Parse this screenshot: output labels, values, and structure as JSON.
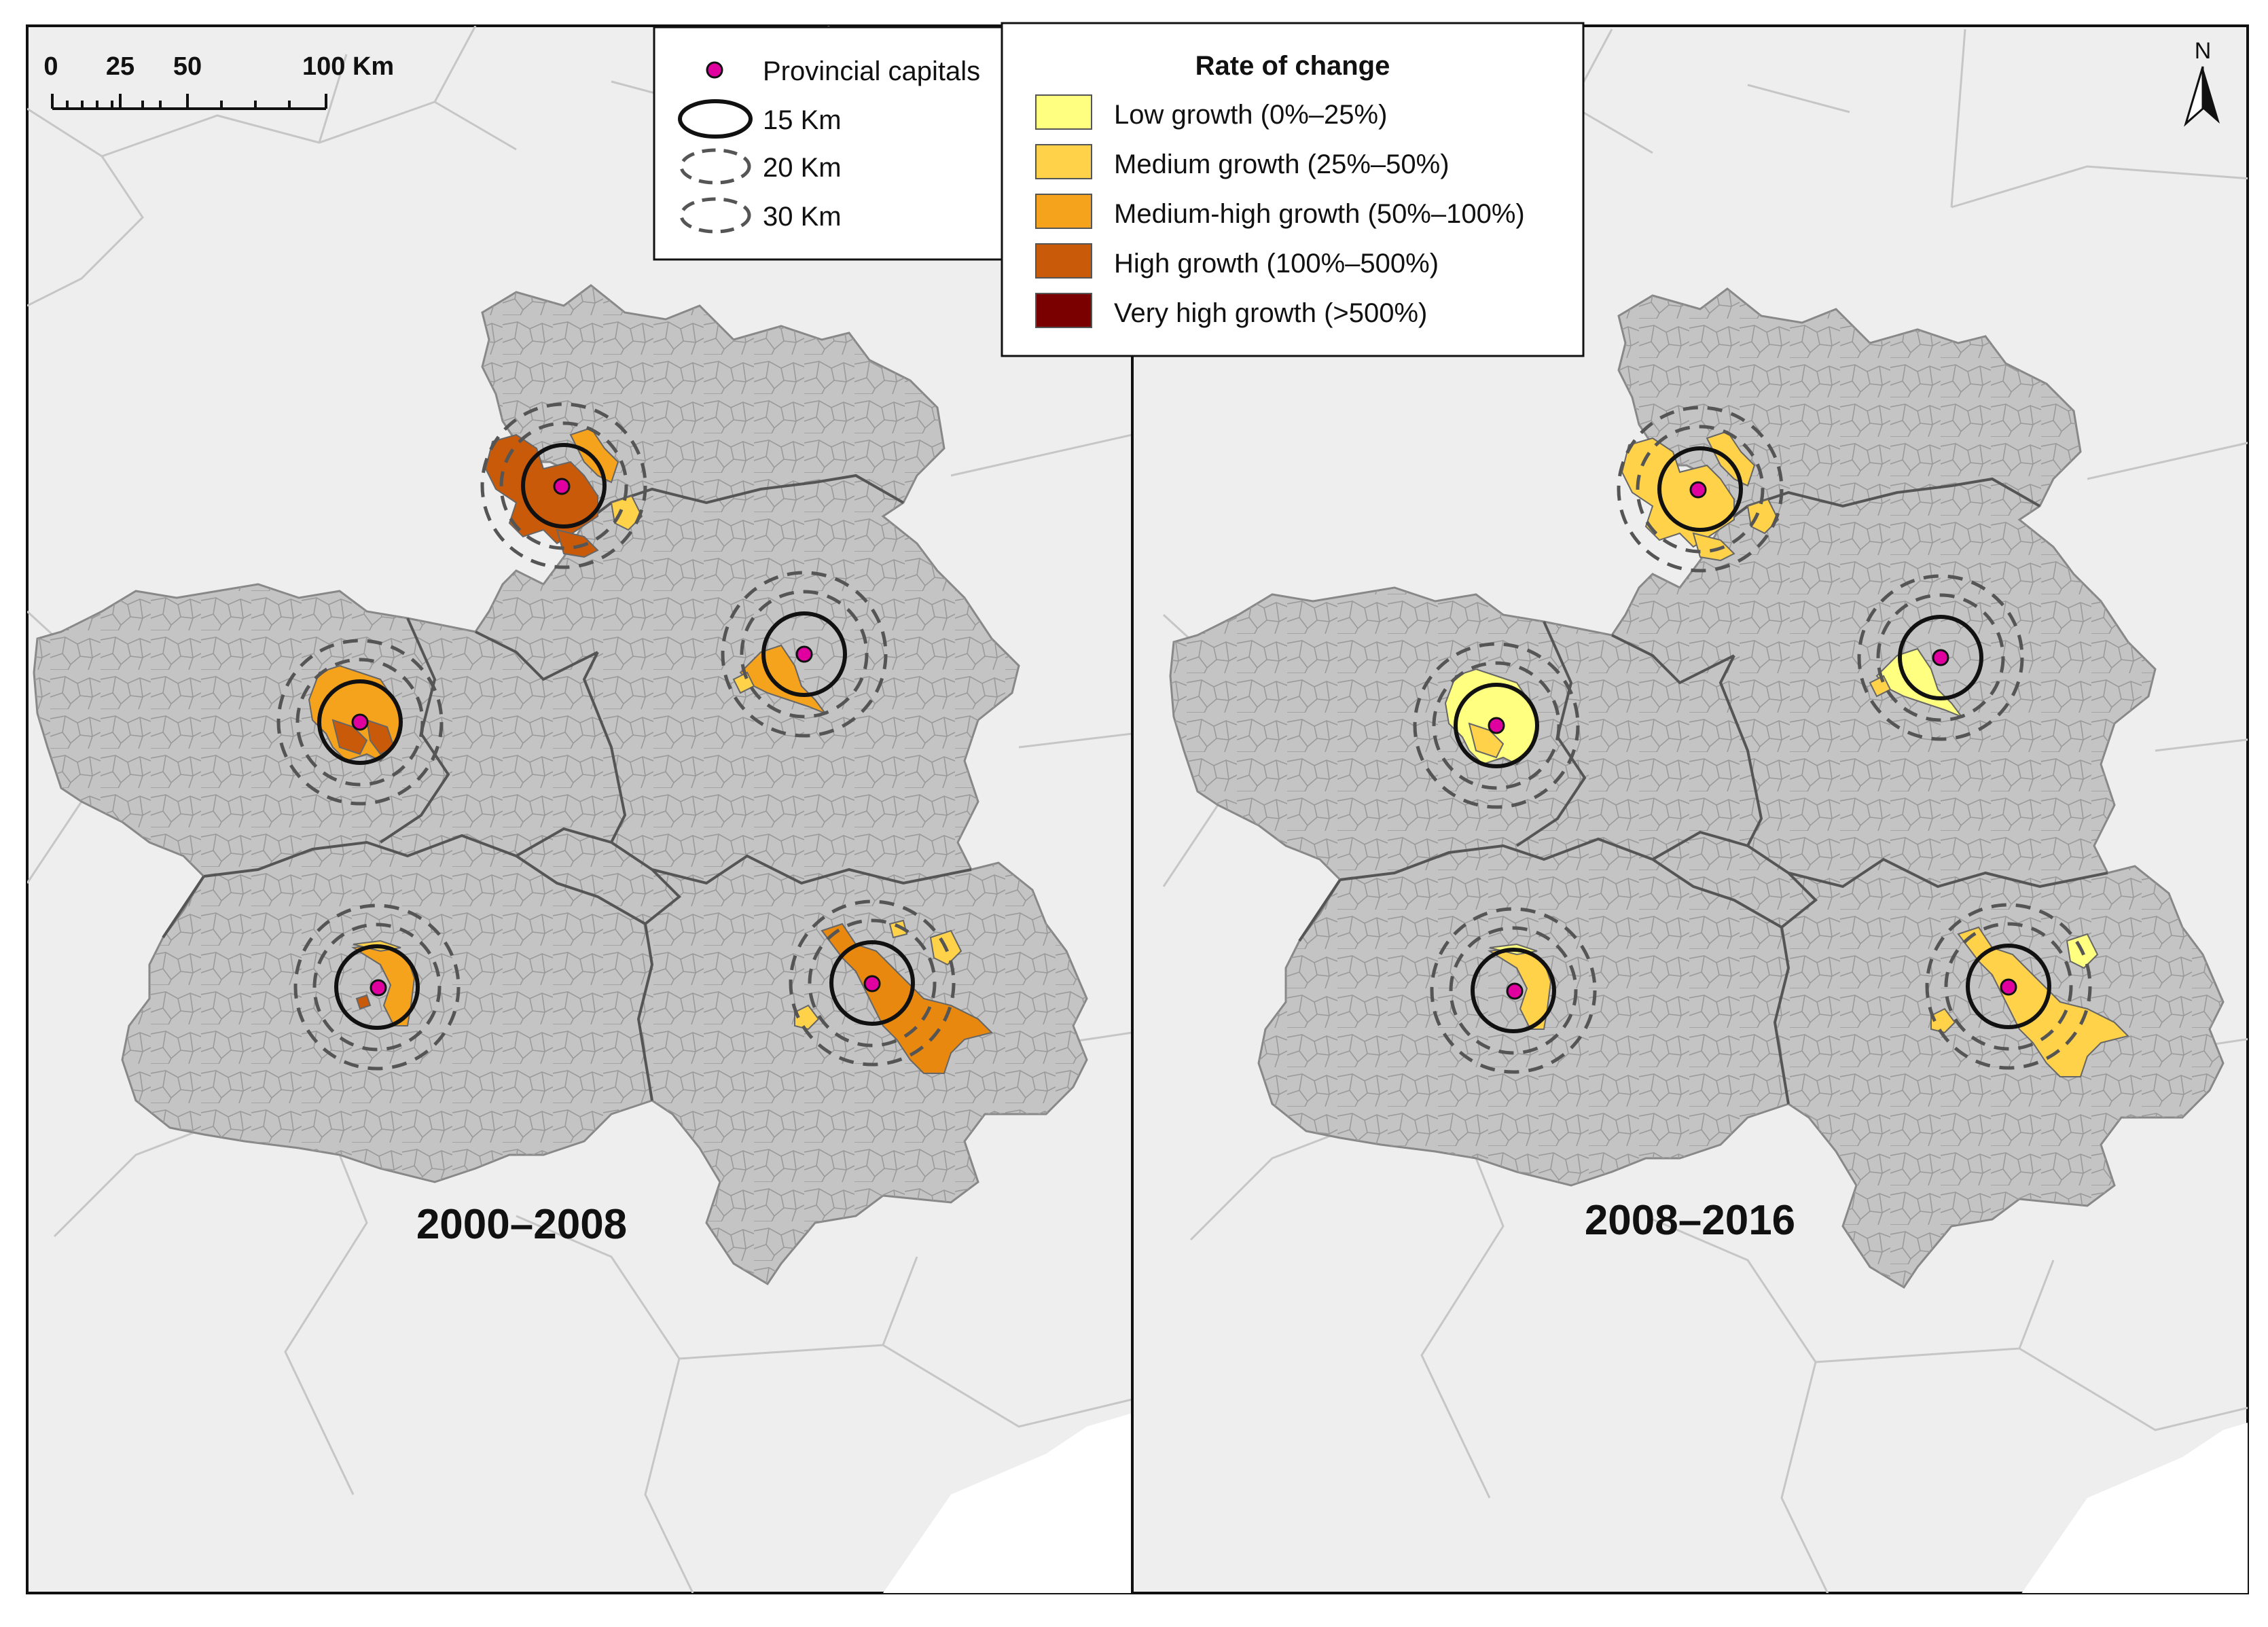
{
  "panels": [
    {
      "title": "2000–2008"
    },
    {
      "title": "2008–2016"
    }
  ],
  "legend_capitals": {
    "capitals_label": "Provincial capitals",
    "buffers": [
      "15 Km",
      "20 Km",
      "30 Km"
    ]
  },
  "legend_rate": {
    "title": "Rate of change",
    "classes": [
      {
        "label": "Low growth (0%–25%)",
        "color": "#ffff80"
      },
      {
        "label": "Medium growth (25%–50%)",
        "color": "#ffd24a"
      },
      {
        "label": "Medium-high growth (50%–100%)",
        "color": "#f5a21c"
      },
      {
        "label": "High growth (100%–500%)",
        "color": "#c85a0a"
      },
      {
        "label": "Very high growth (>500%)",
        "color": "#7a0000"
      }
    ]
  },
  "scalebar": {
    "ticks": [
      "0",
      "25",
      "50",
      "100 Km"
    ]
  },
  "north_arrow": {
    "label": "N"
  },
  "colors": {
    "background": "#eeeeee",
    "region": "#c4c4c4",
    "capital": "#e000a0"
  }
}
